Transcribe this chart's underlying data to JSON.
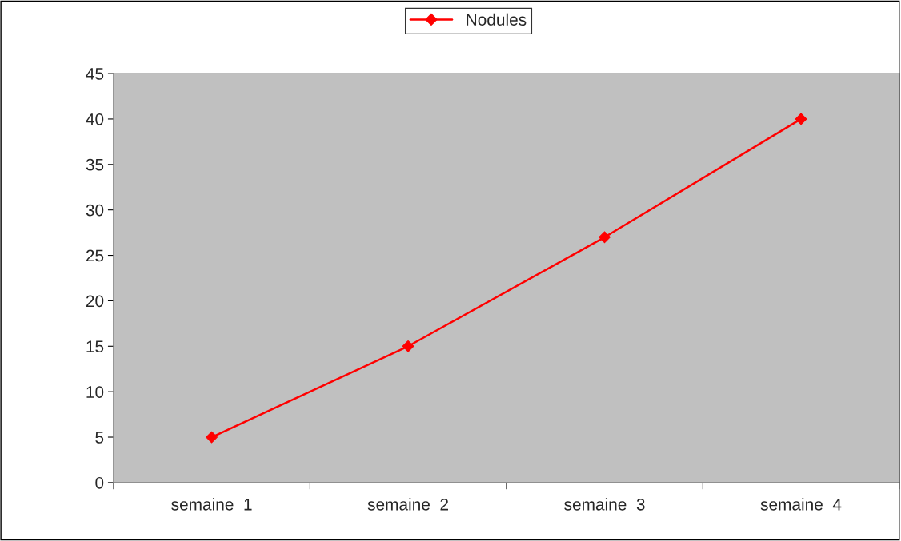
{
  "chart_data": {
    "type": "line",
    "categories": [
      "semaine  1",
      "semaine  2",
      "semaine  3",
      "semaine  4"
    ],
    "series": [
      {
        "name": "Nodules",
        "color": "#ff0000",
        "values": [
          5,
          15,
          27,
          40
        ]
      }
    ],
    "ylim": [
      0,
      45
    ],
    "yticks": [
      0,
      5,
      10,
      15,
      20,
      25,
      30,
      35,
      40,
      45
    ],
    "grid": false,
    "legend": "top",
    "marker": "diamond",
    "line_style": "solid"
  }
}
